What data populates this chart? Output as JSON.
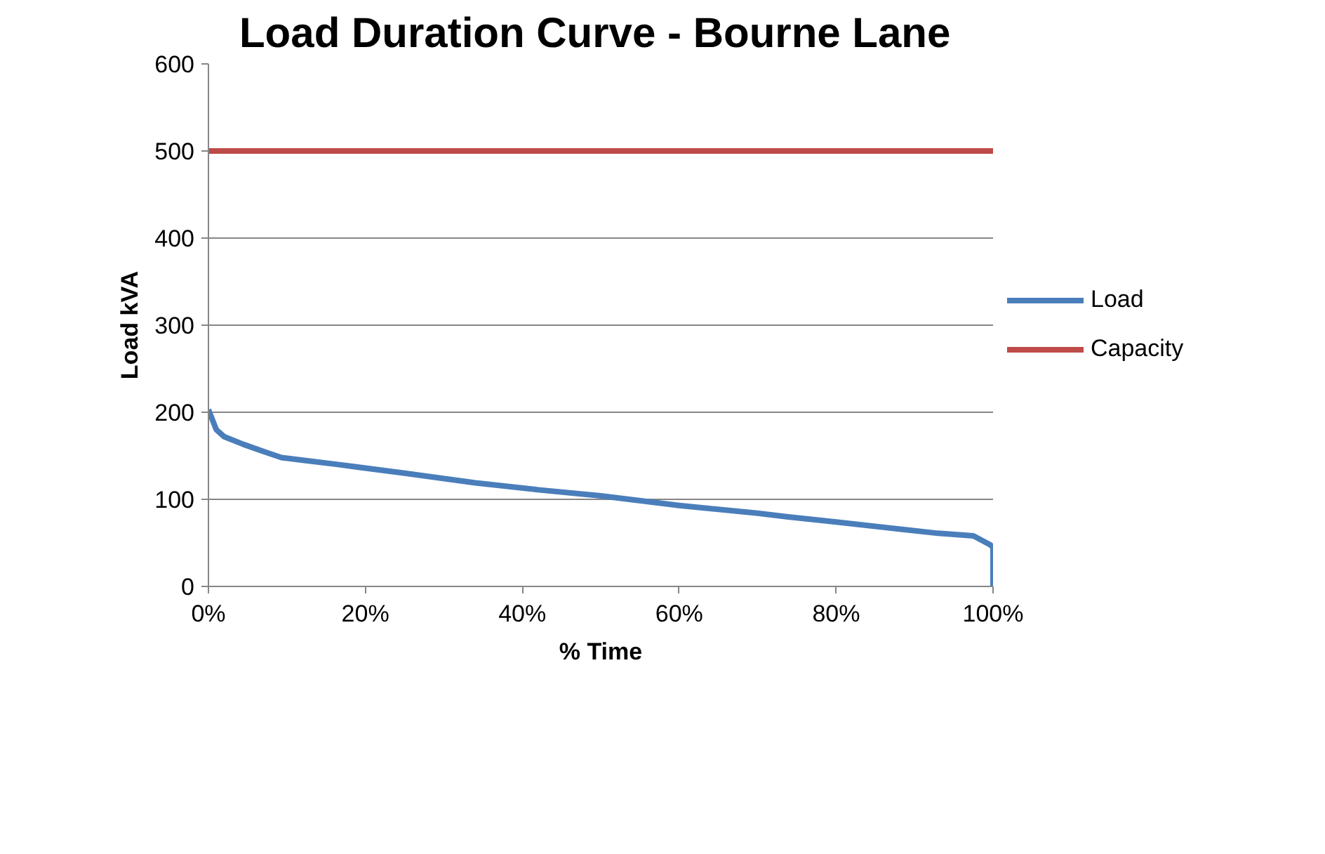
{
  "chart_data": {
    "type": "line",
    "title": "Load Duration Curve  - Bourne Lane",
    "xlabel": "% Time",
    "ylabel": "Load kVA",
    "xlim": [
      0,
      100
    ],
    "xticks": [
      {
        "value": 0,
        "label": "0%"
      },
      {
        "value": 20,
        "label": "20%"
      },
      {
        "value": 40,
        "label": "40%"
      },
      {
        "value": 60,
        "label": "60%"
      },
      {
        "value": 80,
        "label": "80%"
      },
      {
        "value": 100,
        "label": "100%"
      }
    ],
    "ylim": [
      0,
      600
    ],
    "yticks": [
      0,
      100,
      200,
      300,
      400,
      500,
      600
    ],
    "grid": "y",
    "legend": "right",
    "marker": "none",
    "line_style": "solid",
    "series": [
      {
        "name": "Load",
        "color": "#4a7ebb",
        "x": [
          0,
          1,
          2,
          4.5,
          7,
          9.3,
          12,
          16.5,
          25,
          34,
          42,
          50,
          60,
          70,
          73.7,
          80,
          88,
          93,
          97.5,
          99.6,
          100,
          100
        ],
        "values": [
          203,
          180,
          172,
          163,
          155,
          148,
          145,
          140,
          130,
          119,
          111,
          104,
          93,
          84,
          80,
          74,
          66,
          61,
          58,
          48,
          45,
          0
        ]
      },
      {
        "name": "Capacity",
        "color": "#be4b48",
        "x": [
          0,
          100
        ],
        "values": [
          500,
          500
        ]
      }
    ]
  }
}
